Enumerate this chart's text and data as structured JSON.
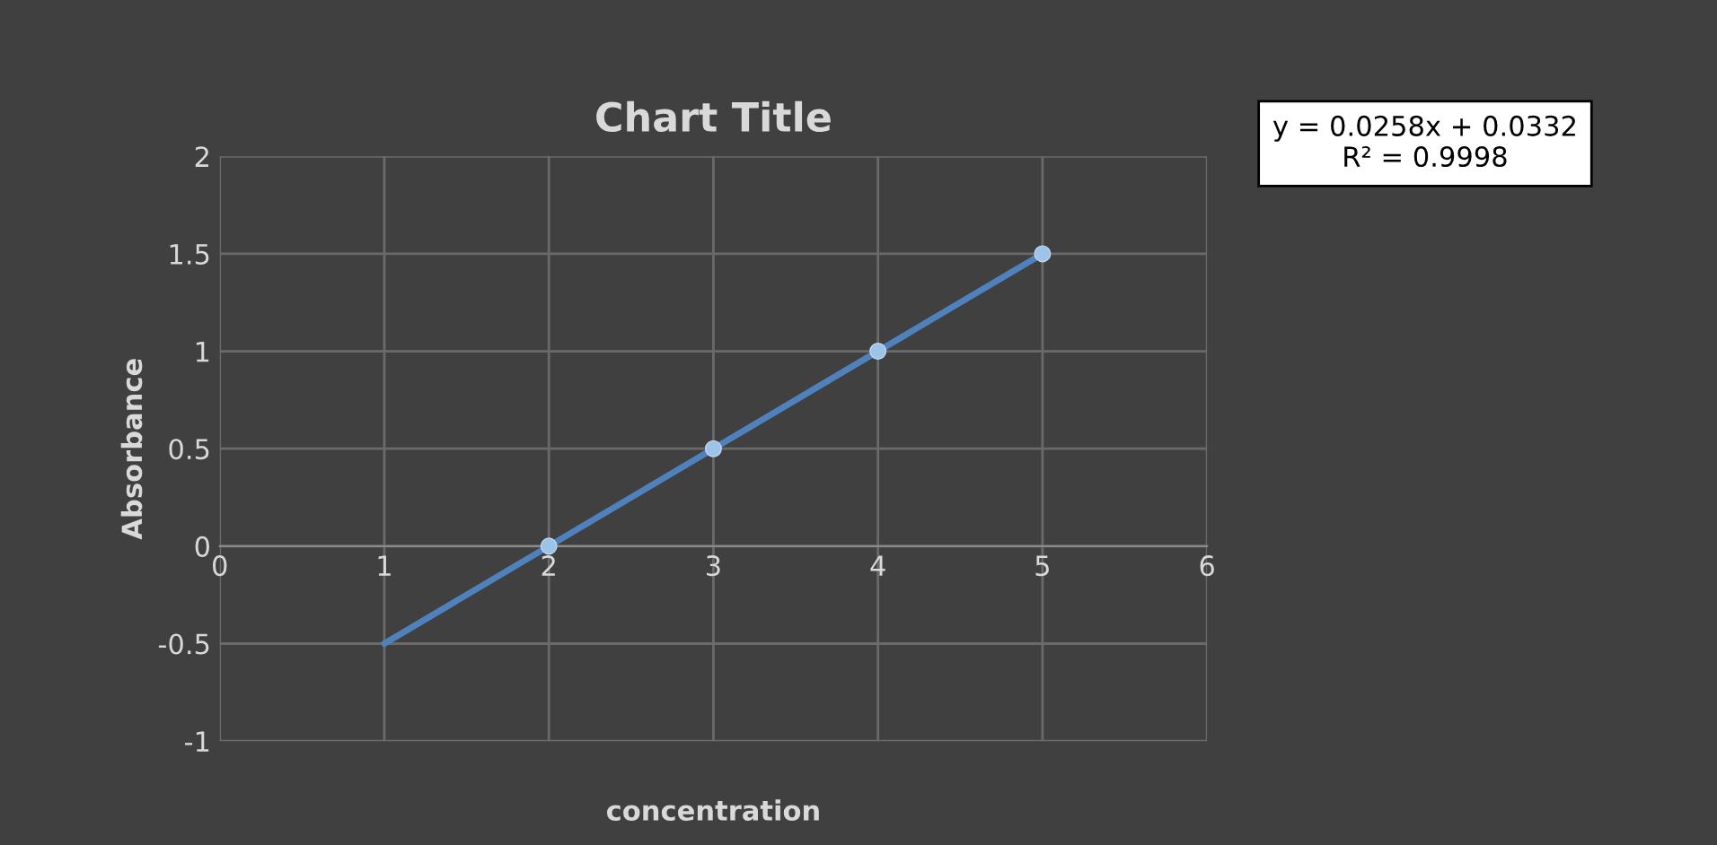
{
  "chart_data": {
    "type": "scatter",
    "title": "Chart Title",
    "xlabel": "concentration",
    "ylabel": "Absorbance",
    "xlim": [
      0,
      6
    ],
    "xticks": [
      0,
      1,
      2,
      3,
      4,
      5,
      6
    ],
    "ylim": [
      -1,
      2
    ],
    "yticks": [
      -1,
      -0.5,
      0,
      0.5,
      1,
      1.5,
      2
    ],
    "grid": true,
    "legend": false,
    "series": [
      {
        "color": "#9dc3e6",
        "marker": "circle",
        "x": [
          2,
          3,
          4,
          5
        ],
        "values": [
          0,
          0.5,
          1,
          1.5
        ]
      },
      {
        "type": "line",
        "color": "#4f81bd",
        "marker": "none",
        "line_style": "solid",
        "x": [
          1,
          5
        ],
        "values": [
          -0.5,
          1.5
        ]
      }
    ],
    "annotations": [
      "y = 0.0258x + 0.0332\nR² = 0.9998"
    ]
  }
}
